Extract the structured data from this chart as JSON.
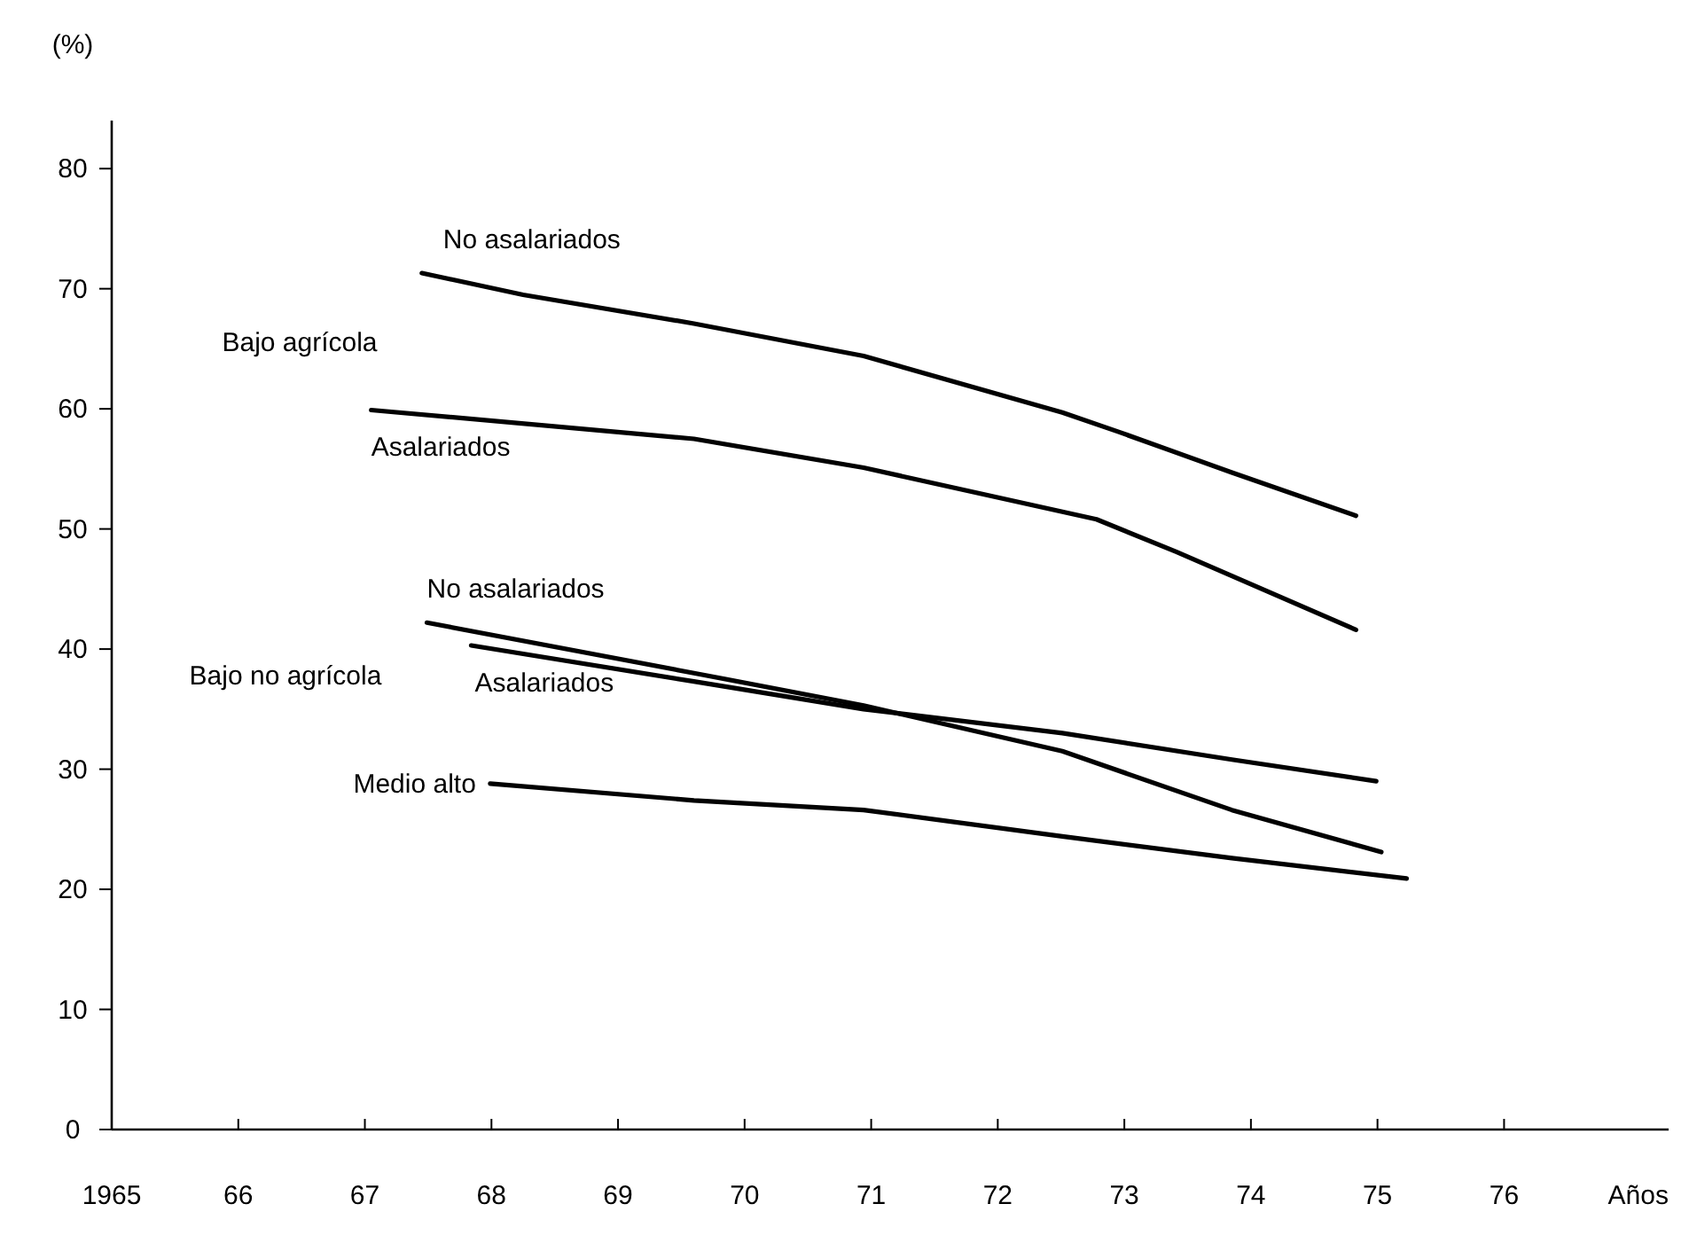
{
  "chart_data": {
    "type": "line",
    "ylabel": "(%)",
    "xlabel": "Años",
    "xlim": [
      1965,
      1977.3
    ],
    "ylim": [
      0,
      84
    ],
    "xticks": [
      {
        "value": 1965,
        "label": "1965"
      },
      {
        "value": 1966,
        "label": "66"
      },
      {
        "value": 1967,
        "label": "67"
      },
      {
        "value": 1968,
        "label": "68"
      },
      {
        "value": 1969,
        "label": "69"
      },
      {
        "value": 1970,
        "label": "70"
      },
      {
        "value": 1971,
        "label": "71"
      },
      {
        "value": 1972,
        "label": "72"
      },
      {
        "value": 1973,
        "label": "73"
      },
      {
        "value": 1974,
        "label": "74"
      },
      {
        "value": 1975,
        "label": "75"
      },
      {
        "value": 1976,
        "label": "76"
      }
    ],
    "yticks": [
      0,
      10,
      20,
      30,
      40,
      50,
      60,
      70,
      80
    ],
    "grid": false,
    "marker": "none",
    "line_style": "solid",
    "series": [
      {
        "name": "No asalariados",
        "color": "#000000",
        "x": [
          1967.45,
          1968.25,
          1969.6,
          1970.94,
          1972.51,
          1972.95,
          1973.85,
          1974.83
        ],
        "values": [
          71.3,
          69.5,
          67.1,
          64.4,
          59.7,
          58.1,
          54.7,
          51.1
        ]
      },
      {
        "name": "Asalariados",
        "color": "#000000",
        "x": [
          1967.05,
          1969.6,
          1970.94,
          1972.78,
          1973.41,
          1974.83
        ],
        "values": [
          59.9,
          57.5,
          55.1,
          50.8,
          48.1,
          41.6
        ]
      },
      {
        "name": "No asalariados",
        "color": "#000000",
        "x": [
          1967.49,
          1969.6,
          1970.94,
          1972.51,
          1973.85,
          1975.03
        ],
        "values": [
          42.2,
          38.0,
          35.3,
          31.5,
          26.6,
          23.1
        ]
      },
      {
        "name": "Asalariados",
        "color": "#000000",
        "x": [
          1967.84,
          1969.6,
          1970.94,
          1972.51,
          1973.85,
          1974.99
        ],
        "values": [
          40.3,
          37.3,
          35.0,
          33.0,
          30.8,
          29.0
        ]
      },
      {
        "name": "Medio alto",
        "color": "#000000",
        "x": [
          1967.99,
          1969.6,
          1970.94,
          1972.51,
          1973.85,
          1975.23
        ],
        "values": [
          28.8,
          27.4,
          26.6,
          24.4,
          22.6,
          20.9
        ]
      }
    ],
    "annotations": [
      "Bajo agrícola",
      "Bajo no agrícola"
    ]
  }
}
